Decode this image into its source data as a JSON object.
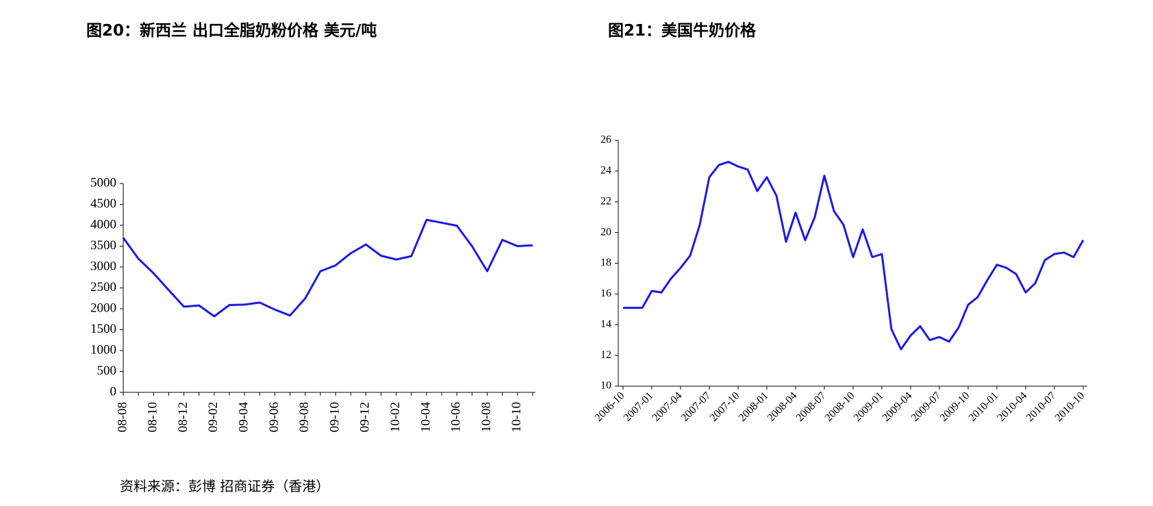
{
  "chart_data": [
    {
      "type": "line",
      "title": "图20：新西兰 出口全脂奶粉价格 美元/吨",
      "categories": [
        "08-08",
        null,
        "08-10",
        null,
        "08-12",
        null,
        "09-02",
        null,
        "09-04",
        null,
        "09-06",
        null,
        "09-08",
        null,
        "09-10",
        null,
        "09-12",
        null,
        "10-02",
        null,
        "10-04",
        null,
        "10-06",
        null,
        "10-08",
        null,
        "10-10",
        null
      ],
      "series": [
        {
          "name": "新西兰出口全脂奶粉价格",
          "color": "#1a1ae6",
          "values": [
            3700,
            3200,
            2850,
            2450,
            2050,
            2080,
            1820,
            2090,
            2100,
            2150,
            1980,
            1840,
            2250,
            2900,
            3040,
            3330,
            3540,
            3270,
            3180,
            3260,
            4130,
            4060,
            3990,
            3500,
            2900,
            3650,
            3500,
            3520
          ]
        }
      ],
      "ylim": [
        0,
        5000
      ],
      "yticks": [
        0,
        500,
        1000,
        1500,
        2000,
        2500,
        3000,
        3500,
        4000,
        4500,
        5000
      ],
      "grid": false
    },
    {
      "type": "line",
      "title": "图21：美国牛奶价格",
      "categories": [
        "2006-10",
        null,
        null,
        "2007-01",
        null,
        null,
        "2007-04",
        null,
        null,
        "2007-07",
        null,
        null,
        "2007-10",
        null,
        null,
        "2008-01",
        null,
        null,
        "2008-04",
        null,
        null,
        "2008-07",
        null,
        null,
        "2008-10",
        null,
        null,
        "2009-01",
        null,
        null,
        "2009-04",
        null,
        null,
        "2009-07",
        null,
        null,
        "2009-10",
        null,
        null,
        "2010-01",
        null,
        null,
        "2010-04",
        null,
        null,
        "2010-07",
        null,
        null,
        "2010-10"
      ],
      "series": [
        {
          "name": "美国牛奶价格",
          "color": "#1a1ae6",
          "values": [
            15.1,
            15.1,
            15.1,
            16.2,
            16.1,
            17.0,
            17.7,
            18.5,
            20.5,
            23.6,
            24.4,
            24.6,
            24.3,
            24.1,
            22.7,
            23.6,
            22.4,
            19.4,
            21.3,
            19.5,
            21.0,
            23.7,
            21.4,
            20.5,
            18.4,
            20.2,
            18.4,
            18.6,
            13.7,
            12.4,
            13.3,
            13.9,
            13.0,
            13.2,
            12.9,
            13.8,
            15.3,
            15.8,
            16.9,
            17.9,
            17.7,
            17.3,
            16.1,
            16.7,
            18.2,
            18.6,
            18.7,
            18.4,
            19.5
          ]
        }
      ],
      "ylim": [
        10,
        26
      ],
      "yticks": [
        10,
        12,
        14,
        16,
        18,
        20,
        22,
        24,
        26
      ],
      "grid": false
    }
  ],
  "source": "资料来源：彭博 招商证券（香港）"
}
